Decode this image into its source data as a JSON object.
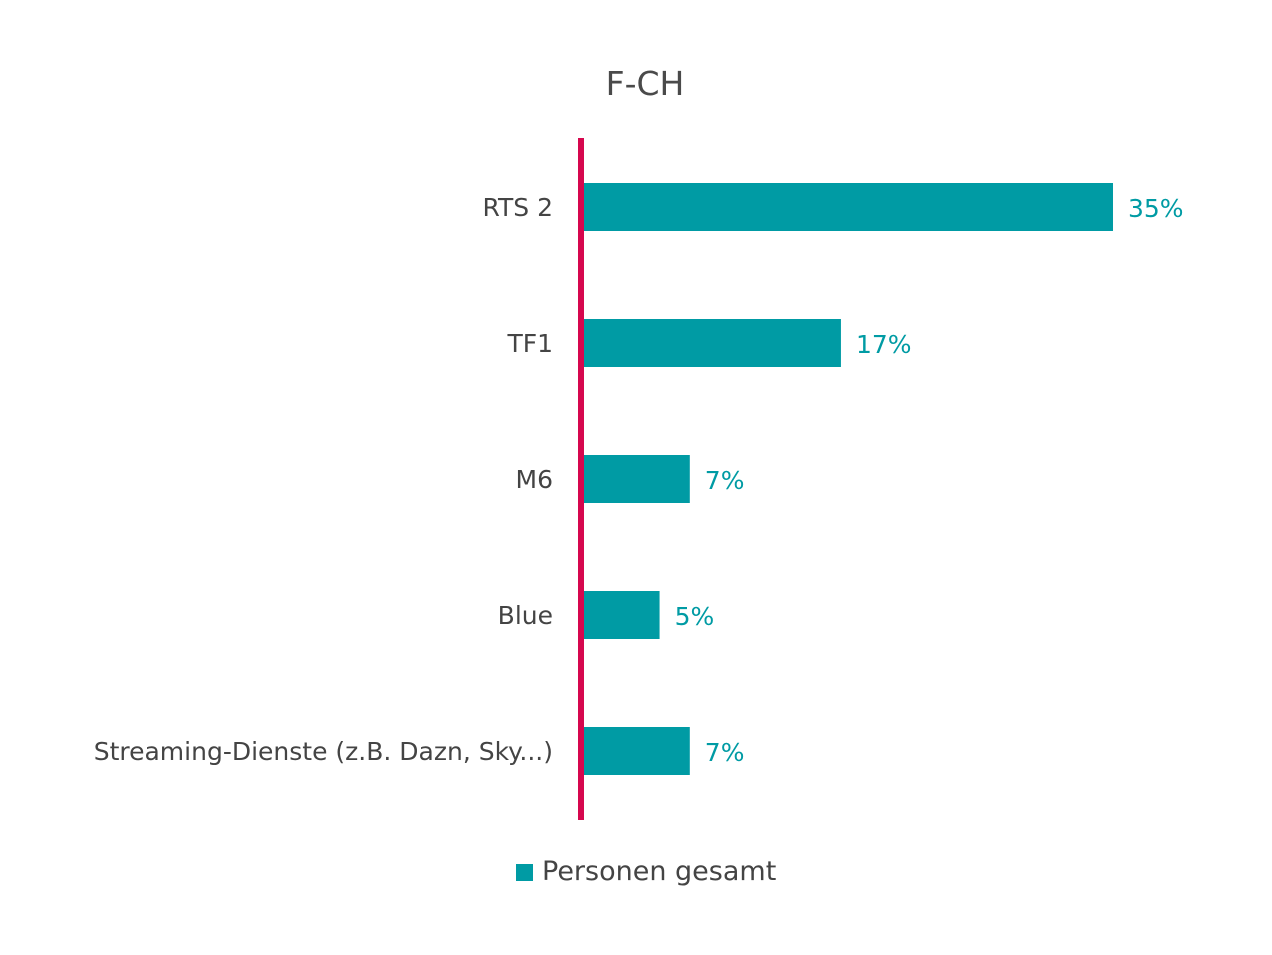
{
  "chart_data": {
    "type": "bar",
    "orientation": "horizontal",
    "title": "F-CH",
    "categories": [
      "RTS 2",
      "TF1",
      "M6",
      "Blue",
      "Streaming-Dienste (z.B. Dazn, Sky...)"
    ],
    "series": [
      {
        "name": "Personen gesamt",
        "values": [
          35,
          17,
          7,
          5,
          7
        ],
        "color": "#009ba4"
      }
    ],
    "value_labels": [
      "35%",
      "17%",
      "7%",
      "5%",
      "7%"
    ],
    "value_unit": "%",
    "xlim": [
      0,
      38
    ],
    "axis_color": "#d6074e",
    "grid": false,
    "legend_position": "bottom-center"
  }
}
